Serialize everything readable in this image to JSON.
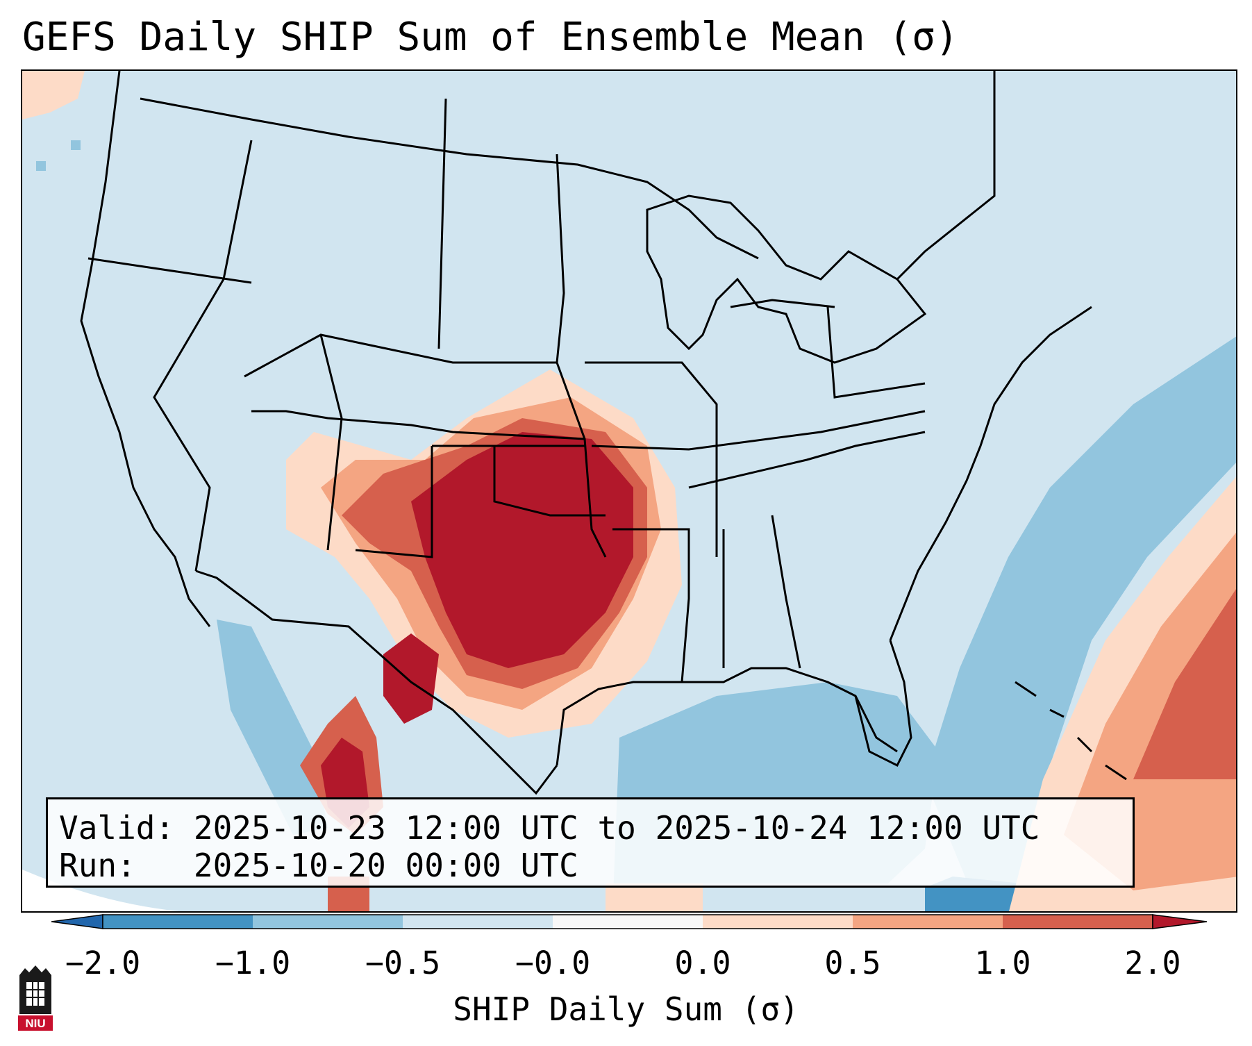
{
  "title": "GEFS Daily SHIP Sum of Ensemble Mean (σ)",
  "info": {
    "valid_label": "Valid:",
    "valid_value": "2025-10-23 12:00 UTC to 2025-10-24 12:00 UTC",
    "run_label": "Run:",
    "run_value": "2025-10-20 00:00 UTC"
  },
  "colorbar": {
    "label": "SHIP Daily Sum (σ)",
    "tick_labels": [
      "−2.0",
      "−1.0",
      "−0.5",
      "−0.0",
      "0.0",
      "0.5",
      "1.0",
      "2.0"
    ],
    "extend": "both",
    "colors": [
      "#4393c3",
      "#92c5de",
      "#d1e5f0",
      "#f7f7f7",
      "#fddbc7",
      "#f4a582",
      "#d6604d",
      "#b2182b"
    ],
    "under_color": "#2166ac",
    "over_color": "#b2182b"
  },
  "logo": {
    "text": "NIU",
    "color": "#c8102e"
  },
  "colors": {
    "land_background": "#d1e5f0",
    "ocean_background": "#92c5de",
    "border": "#000000"
  }
}
